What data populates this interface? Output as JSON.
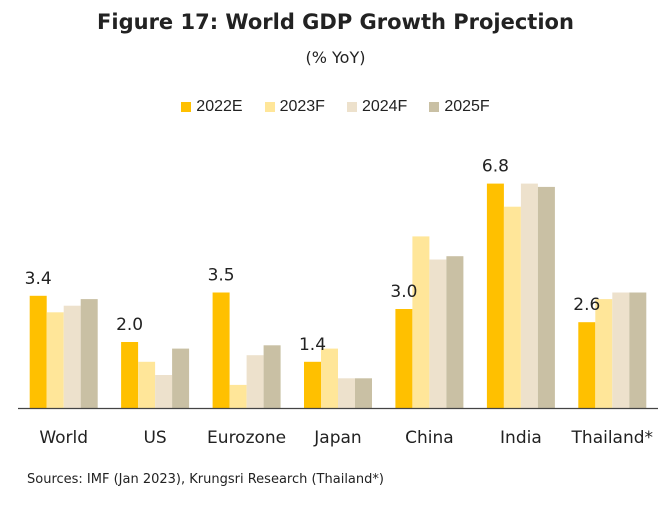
{
  "header": {
    "title": "Figure 17:  World GDP Growth Projection",
    "subtitle": "(% YoY)"
  },
  "footer": {
    "source": "Sources: IMF (Jan 2023), Krungsri Research (Thailand*)"
  },
  "chart_data": {
    "type": "bar",
    "title": "Figure 17:  World GDP Growth Projection",
    "subtitle": "(% YoY)",
    "categories": [
      "World",
      "US",
      "Eurozone",
      "Japan",
      "China",
      "India",
      "Thailand*"
    ],
    "series": [
      {
        "name": "2022E",
        "color": "#FFC000",
        "values": [
          3.4,
          2.0,
          3.5,
          1.4,
          3.0,
          6.8,
          2.6
        ]
      },
      {
        "name": "2023F",
        "color": "#FFE699",
        "values": [
          2.9,
          1.4,
          0.7,
          1.8,
          5.2,
          6.1,
          3.3
        ]
      },
      {
        "name": "2024F",
        "color": "#EDE1CC",
        "values": [
          3.1,
          1.0,
          1.6,
          0.9,
          4.5,
          6.8,
          3.5
        ]
      },
      {
        "name": "2025F",
        "color": "#C9C0A4",
        "values": [
          3.3,
          1.8,
          1.9,
          0.9,
          4.6,
          6.7,
          3.5
        ]
      }
    ],
    "data_labels": {
      "series": "2022E",
      "texts": [
        "3.4",
        "2.0",
        "3.5",
        "1.4",
        "3.0",
        "6.8",
        "2.6"
      ]
    },
    "ylim": [
      0,
      7.5
    ],
    "grid": false,
    "legend_position": "top-center",
    "xlabel": "",
    "ylabel": ""
  }
}
